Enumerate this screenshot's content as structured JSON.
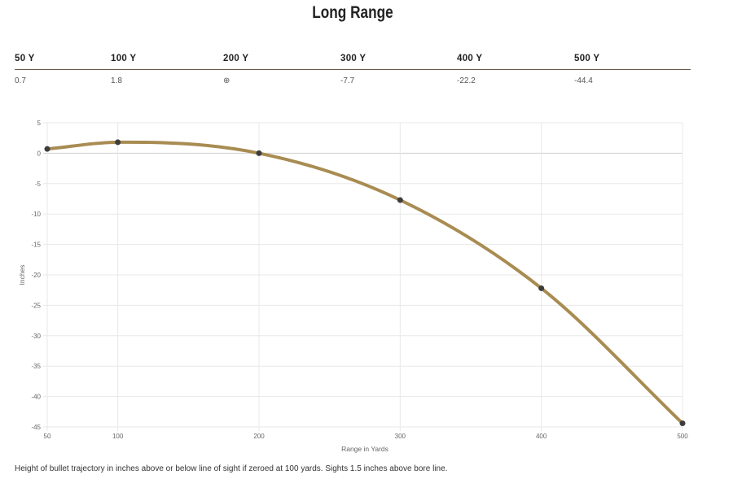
{
  "title": "Long Range",
  "table": {
    "headers": [
      "50 Y",
      "100 Y",
      "200 Y",
      "300 Y",
      "400 Y",
      "500 Y"
    ],
    "values": [
      "0.7",
      "1.8",
      "⊕",
      "-7.7",
      "-22.2",
      "-44.4"
    ]
  },
  "footnote": "Height of bullet trajectory in inches above or below line of sight if zeroed at 100 yards. Sights 1.5 inches above bore line.",
  "chart_data": {
    "type": "line",
    "x": [
      50,
      100,
      200,
      300,
      400,
      500
    ],
    "series": [
      {
        "values": [
          0.7,
          1.8,
          0,
          -7.7,
          -22.2,
          -44.4
        ],
        "color": "#a88c52"
      }
    ],
    "xlabel": "Range in Yards",
    "ylabel": "Inches",
    "xticks": [
      "50",
      "100",
      "200",
      "300",
      "400",
      "500"
    ],
    "yticks": [
      "5",
      "0",
      "-5",
      "-10",
      "-15",
      "-20",
      "-25",
      "-30",
      "-35",
      "-40",
      "-45"
    ],
    "ylim": [
      -45,
      5
    ],
    "grid": true,
    "point_color": "#3d3d3d"
  }
}
